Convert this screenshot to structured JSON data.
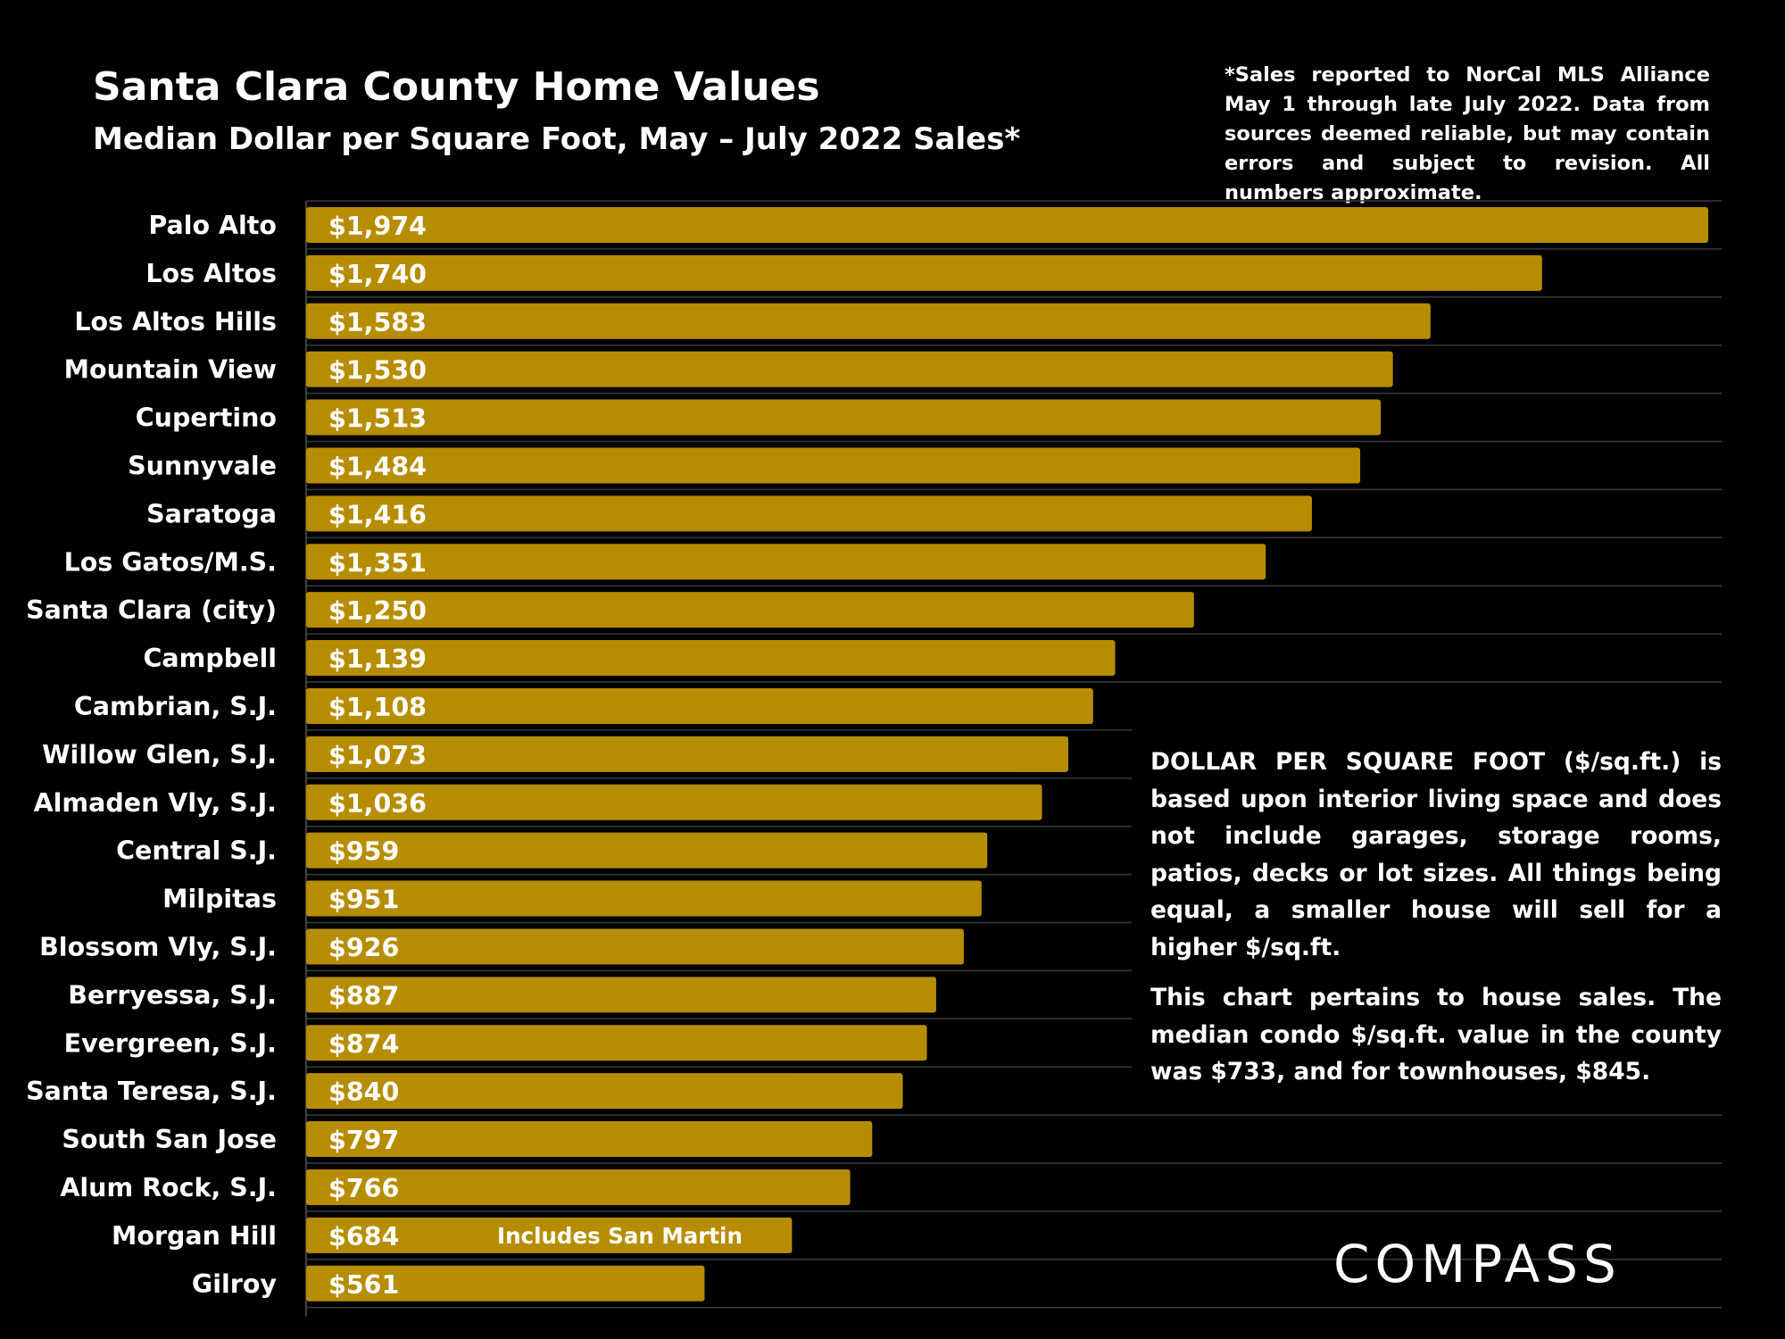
{
  "chart_data": {
    "type": "bar",
    "orientation": "horizontal",
    "title": "Santa Clara County Home Values",
    "subtitle": "Median Dollar per Square Foot, May – July 2022 Sales*",
    "footnote": "*Sales reported to NorCal MLS Alliance May 1 through late July 2022. Data from sources deemed reliable, but may contain errors and subject to revision. All numbers approximate.",
    "categories": [
      "Palo Alto",
      "Los Altos",
      "Los Altos Hills",
      "Mountain View",
      "Cupertino",
      "Sunnyvale",
      "Saratoga",
      "Los Gatos/M.S.",
      "Santa Clara (city)",
      "Campbell",
      "Cambrian, S.J.",
      "Willow Glen, S.J.",
      "Almaden Vly, S.J.",
      "Central S.J.",
      "Milpitas",
      "Blossom Vly, S.J.",
      "Berryessa, S.J.",
      "Evergreen, S.J.",
      "Santa Teresa, S.J.",
      "South San Jose",
      "Alum Rock, S.J.",
      "Morgan Hill",
      "Gilroy"
    ],
    "values": [
      1974,
      1740,
      1583,
      1530,
      1513,
      1484,
      1416,
      1351,
      1250,
      1139,
      1108,
      1073,
      1036,
      959,
      951,
      926,
      887,
      874,
      840,
      797,
      766,
      684,
      561
    ],
    "value_labels": [
      "$1,974",
      "$1,740",
      "$1,583",
      "$1,530",
      "$1,513",
      "$1,484",
      "$1,416",
      "$1,351",
      "$1,250",
      "$1,139",
      "$1,108",
      "$1,073",
      "$1,036",
      "$959",
      "$951",
      "$926",
      "$887",
      "$874",
      "$840",
      "$797",
      "$766",
      "$684",
      "$561"
    ],
    "annotations": [
      {
        "category": "Morgan Hill",
        "text": "Includes San Martin"
      }
    ],
    "xlim": [
      0,
      1974
    ],
    "bar_color": "#b78d00",
    "grid": true
  },
  "note": {
    "paragraph1": "DOLLAR PER SQUARE FOOT ($/sq.ft.) is based upon interior living space and does not include garages, storage rooms, patios, decks or lot sizes. All things being equal, a smaller house will sell for a higher $/sq.ft.",
    "paragraph2": "This chart pertains to house sales. The median condo $/sq.ft. value in the county was $733, and for townhouses, $845."
  },
  "logo": {
    "text": "COMPASS"
  },
  "colors": {
    "background": "#000000",
    "bar": "#b78d00",
    "text": "#ffffff",
    "gridline": "#3a3a3a"
  }
}
